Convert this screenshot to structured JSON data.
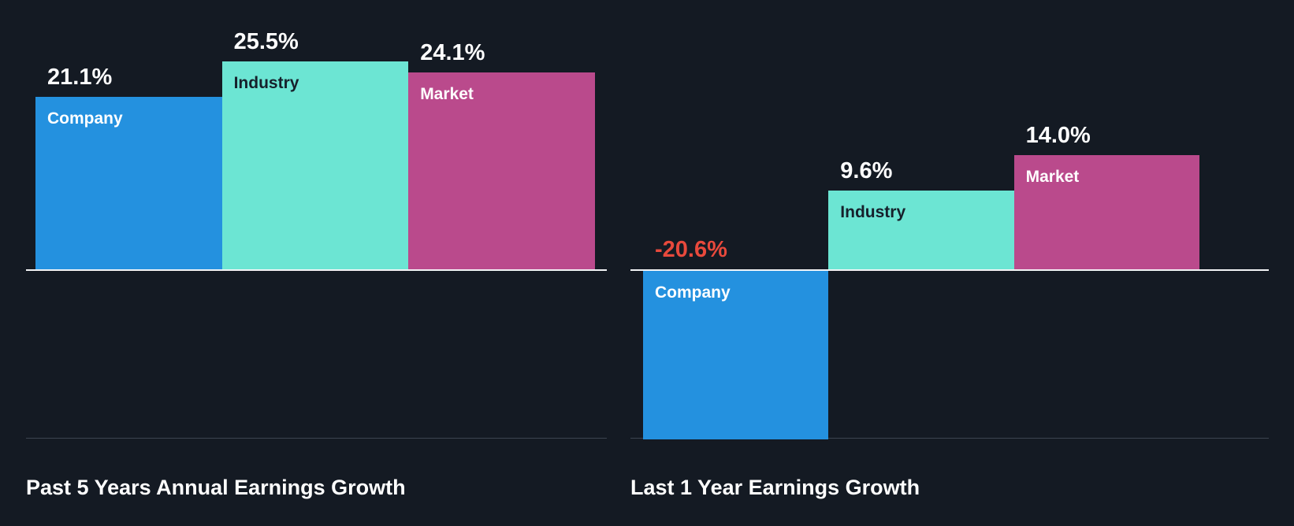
{
  "theme": {
    "background": "#141A23",
    "axis_line_color": "#F2F3F5",
    "bottom_line_color": "#3D4551",
    "positive_value_color": "#FFFFFF",
    "negative_value_color": "#E8493C",
    "bar_colors": {
      "company": "#2491DF",
      "industry": "#6CE5D3",
      "market": "#BA4A8C"
    },
    "bar_label_colors": {
      "company": "#FFFFFF",
      "industry": "#16202B",
      "market": "#FFFFFF"
    }
  },
  "chart_data": [
    {
      "type": "bar",
      "title": "Past 5 Years Annual Earnings Growth",
      "categories": [
        "Company",
        "Industry",
        "Market"
      ],
      "values": [
        21.1,
        25.5,
        24.1
      ],
      "value_labels": [
        "21.1%",
        "25.5%",
        "24.1%"
      ],
      "xlabel": "",
      "ylabel": "",
      "ylim": [
        -22,
        27
      ],
      "baseline": 0,
      "grid": false,
      "legend": false
    },
    {
      "type": "bar",
      "title": "Last 1 Year Earnings Growth",
      "categories": [
        "Company",
        "Industry",
        "Market"
      ],
      "values": [
        -20.6,
        9.6,
        14.0
      ],
      "value_labels": [
        "-20.6%",
        "9.6%",
        "14.0%"
      ],
      "xlabel": "",
      "ylabel": "",
      "ylim": [
        -22,
        27
      ],
      "baseline": 0,
      "grid": false,
      "legend": false
    }
  ]
}
